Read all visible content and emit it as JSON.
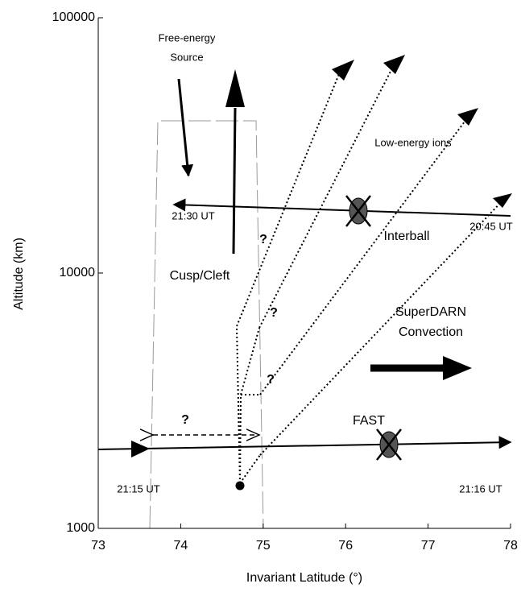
{
  "chart_data": {
    "type": "annotated-log",
    "xlabel": "Invariant Latitude (°)",
    "ylabel": "Altitude (km)",
    "xlim": [
      73,
      78
    ],
    "ylim": [
      1000,
      100000
    ],
    "log_y": true,
    "xticks": [
      73,
      74,
      75,
      76,
      77,
      78
    ],
    "yticks": [
      1000,
      10000,
      100000
    ],
    "annotations": [
      "Free-energy",
      "Source",
      "Low-energy ions",
      "21:30 UT",
      "20:45 UT",
      "Interball",
      "Cusp/Cleft",
      "SuperDARN",
      "Convection",
      "FAST",
      "21:15 UT",
      "21:16 UT",
      "?",
      "?",
      "?",
      "?"
    ]
  }
}
